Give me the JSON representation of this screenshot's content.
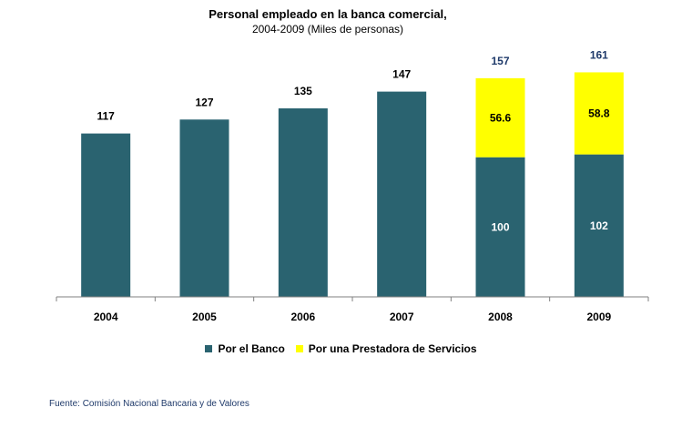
{
  "chart_data": {
    "type": "bar",
    "stacked": true,
    "title": "Personal empleado en la banca comercial,",
    "subtitle": "2004-2009 (Miles de personas)",
    "categories": [
      "2004",
      "2005",
      "2006",
      "2007",
      "2008",
      "2009"
    ],
    "series": [
      {
        "name": "Por el Banco",
        "color": "#2a6370",
        "values": [
          117,
          127,
          135,
          147,
          100,
          102
        ],
        "labels": [
          "",
          "",
          "",
          "",
          "100",
          "102"
        ]
      },
      {
        "name": "Por una Prestadora de Servicios",
        "color": "#ffff00",
        "values": [
          0,
          0,
          0,
          0,
          56.6,
          58.8
        ],
        "labels": [
          "",
          "",
          "",
          "",
          "56.6",
          "58.8"
        ]
      }
    ],
    "totals": [
      "117",
      "127",
      "135",
      "147",
      "157",
      "161"
    ],
    "ylim": [
      0,
      180
    ],
    "grid": false,
    "legend": "bottom"
  },
  "source": "Fuente: Comisión Nacional Bancaria y de Valores"
}
